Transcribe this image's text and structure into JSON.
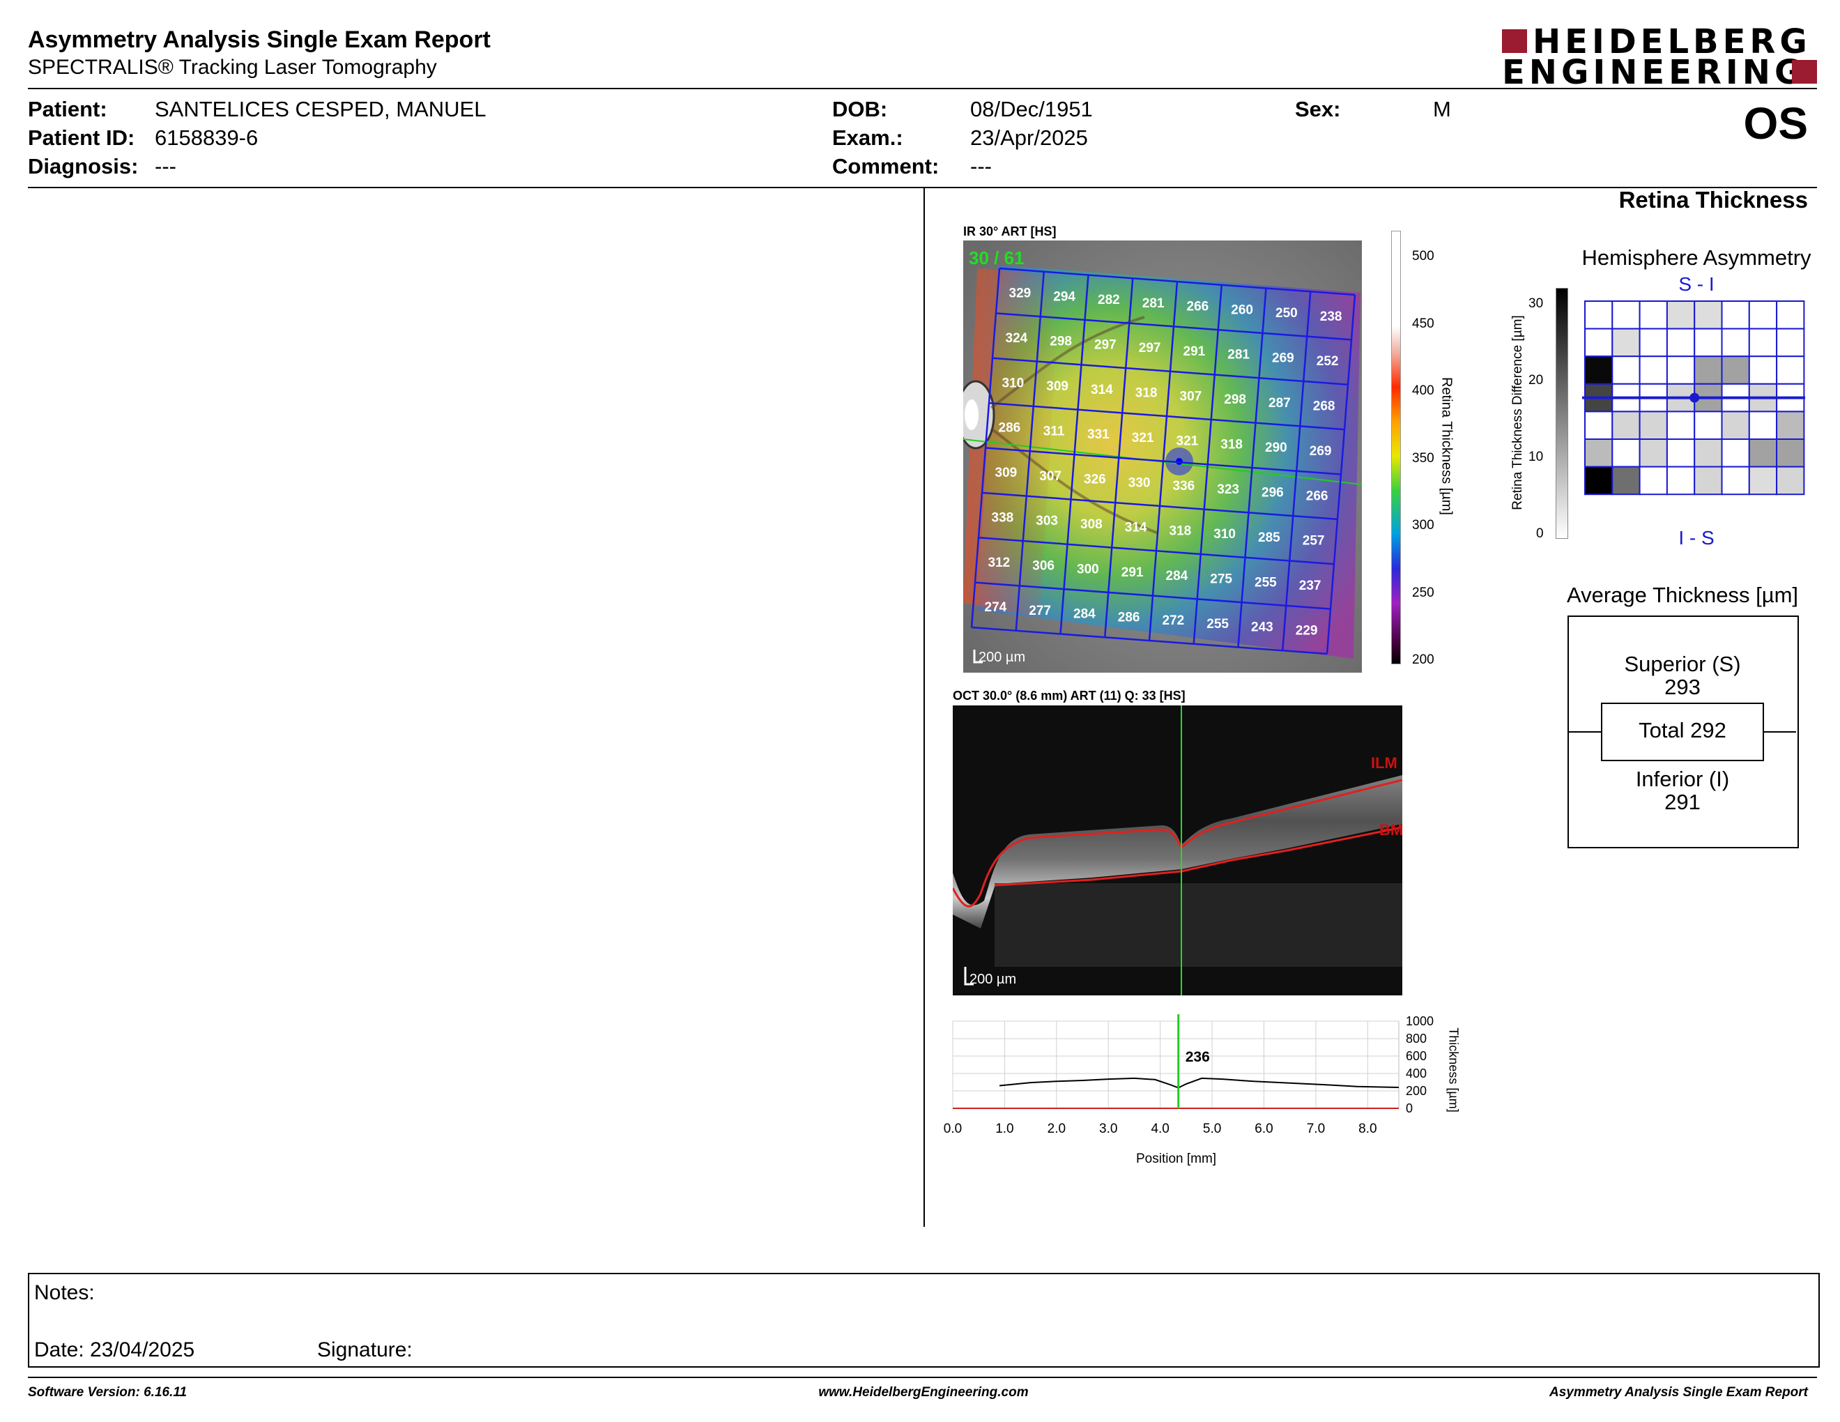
{
  "header": {
    "title": "Asymmetry Analysis Single Exam Report",
    "subtitle": "SPECTRALIS® Tracking Laser Tomography",
    "logo_line1": "HEIDELBERG",
    "logo_line2": "ENGINEERING",
    "brand_color": "#9b1b30"
  },
  "patient": {
    "patient_label": "Patient:",
    "patient_value": "SANTELICES CESPED, MANUEL",
    "id_label": "Patient ID:",
    "id_value": "6158839-6",
    "diagnosis_label": "Diagnosis:",
    "diagnosis_value": "---",
    "dob_label": "DOB:",
    "dob_value": "08/Dec/1951",
    "exam_label": "Exam.:",
    "exam_value": "23/Apr/2025",
    "comment_label": "Comment:",
    "comment_value": "---",
    "sex_label": "Sex:",
    "sex_value": "M",
    "eye": "OS"
  },
  "section_title": "Retina Thickness",
  "fundus": {
    "caption": "IR 30° ART [HS]",
    "scan_counter": "30 / 61",
    "scale_label": "200 µm",
    "colorbar_label": "Retina  Thickness [µm]",
    "colorbar_ticks": [
      "500",
      "450",
      "400",
      "350",
      "300",
      "250",
      "200"
    ],
    "grid": [
      [
        "329",
        "294",
        "282",
        "281",
        "266",
        "260",
        "250",
        "238"
      ],
      [
        "324",
        "298",
        "297",
        "297",
        "291",
        "281",
        "269",
        "252"
      ],
      [
        "310",
        "309",
        "314",
        "318",
        "307",
        "298",
        "287",
        "268"
      ],
      [
        "286",
        "311",
        "331",
        "321",
        "321",
        "318",
        "290",
        "269"
      ],
      [
        "309",
        "307",
        "326",
        "330",
        "336",
        "323",
        "296",
        "266"
      ],
      [
        "338",
        "303",
        "308",
        "314",
        "318",
        "310",
        "285",
        "257"
      ],
      [
        "312",
        "306",
        "300",
        "291",
        "284",
        "275",
        "255",
        "237"
      ],
      [
        "274",
        "277",
        "284",
        "286",
        "272",
        "255",
        "243",
        "229"
      ]
    ]
  },
  "oct": {
    "caption": "OCT 30.0° (8.6 mm) ART (11) Q: 33 [HS]",
    "ilm_label": "ILM",
    "bm_label": "BM",
    "scale_label": "200 µm"
  },
  "thickness_profile": {
    "ylabel": "Thickness [µm]",
    "xlabel": "Position [mm]",
    "y_ticks": [
      "1000",
      "800",
      "600",
      "400",
      "200",
      "0"
    ],
    "x_ticks": [
      "0.0",
      "1.0",
      "2.0",
      "3.0",
      "4.0",
      "5.0",
      "6.0",
      "7.0",
      "8.0"
    ],
    "cursor_value": "236",
    "chart_data": {
      "type": "line",
      "x": [
        0.9,
        1.5,
        2.0,
        2.5,
        3.0,
        3.5,
        3.9,
        4.2,
        4.35,
        4.5,
        4.8,
        5.2,
        5.8,
        6.5,
        7.2,
        7.8,
        8.6
      ],
      "y": [
        260,
        295,
        310,
        320,
        335,
        345,
        330,
        270,
        236,
        280,
        345,
        335,
        310,
        290,
        270,
        250,
        240
      ],
      "xlim": [
        0,
        8.6
      ],
      "ylim": [
        0,
        1000
      ],
      "cursor_x": 4.35
    }
  },
  "hemisphere": {
    "title": "Hemisphere Asymmetry",
    "top_label": "S - I",
    "bottom_label": "I - S",
    "ylabel": "Retina Thickness Difference [µm]",
    "scale_ticks": [
      "30",
      "20",
      "10",
      "0"
    ],
    "cells": [
      [
        0,
        0,
        0,
        4,
        4,
        0,
        0,
        0
      ],
      [
        0,
        4,
        0,
        0,
        0,
        0,
        0,
        0
      ],
      [
        29,
        0,
        0,
        0,
        11,
        11,
        0,
        0
      ],
      [
        22,
        0,
        0,
        5,
        11,
        0,
        5,
        0
      ],
      [
        0,
        5,
        5,
        0,
        0,
        5,
        0,
        8
      ],
      [
        8,
        0,
        5,
        0,
        5,
        0,
        11,
        11
      ],
      [
        30,
        17,
        0,
        0,
        5,
        0,
        4,
        5
      ]
    ]
  },
  "average": {
    "title": "Average Thickness [µm]",
    "superior_label": "Superior (S)",
    "superior_value": "293",
    "total_label": "Total 292",
    "inferior_label": "Inferior (I)",
    "inferior_value": "291"
  },
  "notes": {
    "notes_label": "Notes:",
    "date_label": "Date: 23/04/2025",
    "signature_label": "Signature:"
  },
  "footer": {
    "software": "Software Version: 6.16.11",
    "website": "www.HeidelbergEngineering.com",
    "report_name": "Asymmetry Analysis Single Exam Report"
  }
}
